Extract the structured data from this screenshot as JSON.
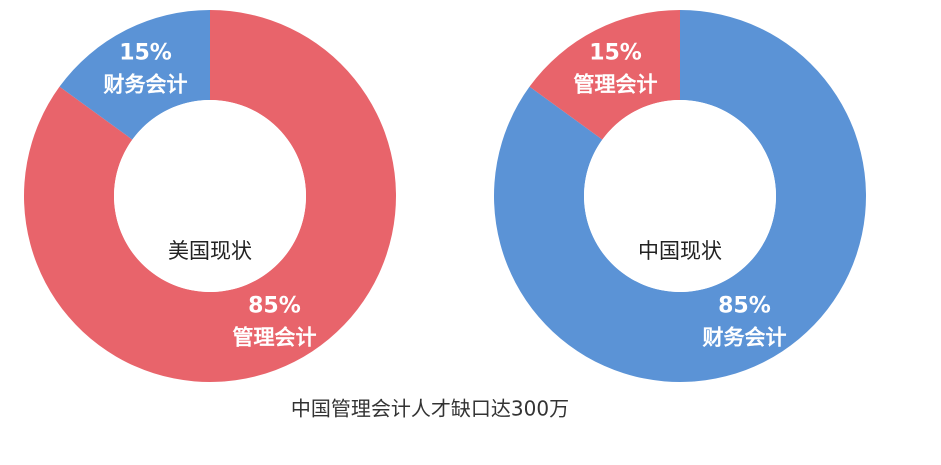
{
  "chart_data": [
    {
      "type": "pie",
      "donut": true,
      "center_label": "美国现状",
      "categories": [
        "管理会计",
        "财务会计"
      ],
      "values": [
        85,
        15
      ],
      "value_labels": [
        "85%",
        "15%"
      ],
      "colors": [
        "#e8646b",
        "#5b93d6"
      ]
    },
    {
      "type": "pie",
      "donut": true,
      "center_label": "中国现状",
      "categories": [
        "财务会计",
        "管理会计"
      ],
      "values": [
        85,
        15
      ],
      "value_labels": [
        "85%",
        "15%"
      ],
      "colors": [
        "#5b93d6",
        "#e8646b"
      ]
    }
  ],
  "caption": "中国管理会计人才缺口达300万"
}
